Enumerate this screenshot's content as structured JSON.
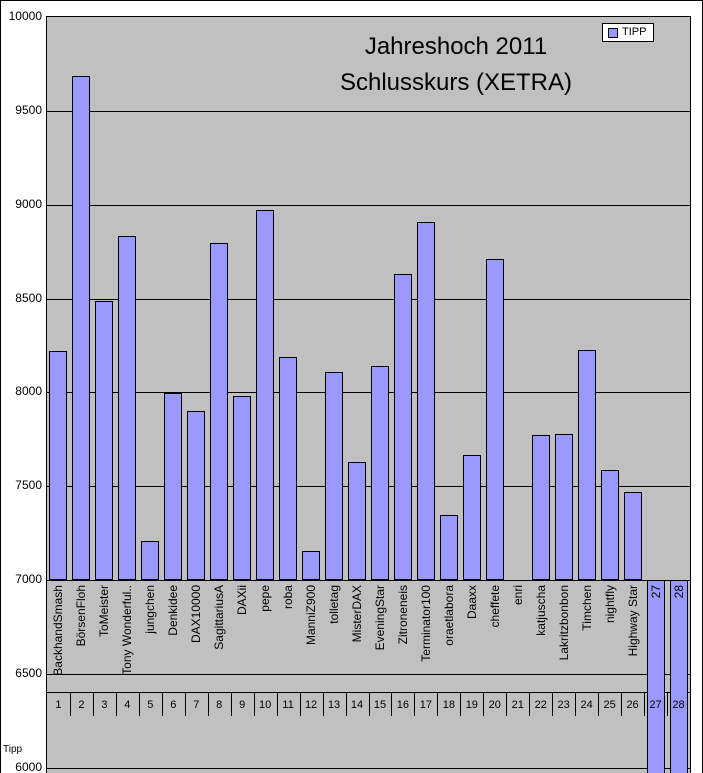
{
  "title": {
    "line1": "Jahreshoch 2011",
    "line2": "Schlusskurs (XETRA)"
  },
  "legend": {
    "label": "TIPP"
  },
  "notes": {
    "bottom_left": "Tipp"
  },
  "colors": {
    "bar": "#9999FF",
    "plot_bg": "#C0C0C0",
    "grid": "#000000",
    "legend_bg": "#FFFFFF"
  },
  "chart_data": {
    "type": "bar",
    "title": "Jahreshoch 2011 Schlusskurs (XETRA)",
    "legend_entries": [
      "TIPP"
    ],
    "legend_position": "top-right",
    "grid": true,
    "plot_bg": "#C0C0C0",
    "bar_color": "#9999FF",
    "ylim": [
      6000,
      10000
    ],
    "ytick_step": 500,
    "yticks": [
      10000,
      9500,
      9000,
      8500,
      8000,
      7500,
      7000,
      6500,
      6000
    ],
    "baseline": 7000,
    "categories": [
      "BackhandSmash",
      "BörsenFloh",
      "ToMeister",
      "Tony Wonderful..",
      "jungchen",
      "Denkidee",
      "DAX10000",
      "SagittariusA",
      "DAXii",
      "pepe",
      "roba",
      "ManniZ900",
      "tolletag",
      "MisterDAX",
      "EveningStar",
      "Zitroneneis",
      "Terminator100",
      "oraetlabora",
      "Daaxx",
      "cheffete",
      "enri",
      "katjuscha",
      "Lakritzbonbon",
      "Timchen",
      "nightfly",
      "Highway Star",
      "27",
      "28"
    ],
    "category_numbers": [
      "1",
      "2",
      "3",
      "4",
      "5",
      "6",
      "7",
      "8",
      "9",
      "10",
      "11",
      "12",
      "13",
      "14",
      "15",
      "16",
      "17",
      "18",
      "19",
      "20",
      "21",
      "22",
      "23",
      "24",
      "25",
      "26",
      "27",
      "28"
    ],
    "series": [
      {
        "name": "TIPP",
        "values": [
          8220,
          9685,
          8485,
          8835,
          7210,
          7995,
          7900,
          8795,
          7980,
          8970,
          8190,
          7155,
          8110,
          7630,
          8140,
          8630,
          8905,
          7345,
          7665,
          8710,
          null,
          7775,
          7780,
          8225,
          7585,
          7470,
          6000,
          6000
        ]
      }
    ],
    "note": "bars 27 and 28 extend downward from the 7000 baseline past the visible bottom of the plot; bar 21 (enri) shows no bar"
  }
}
